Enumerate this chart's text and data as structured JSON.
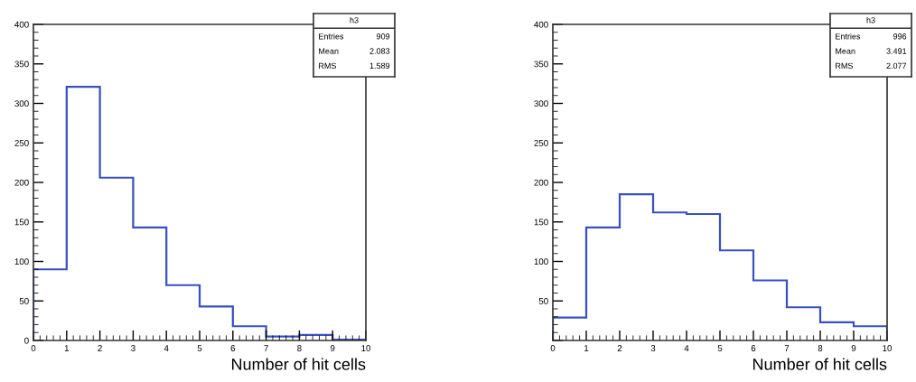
{
  "chart_data": [
    {
      "type": "histogram",
      "xlabel": "Number of hit cells",
      "bins": [
        0,
        1,
        2,
        3,
        4,
        5,
        6,
        7,
        8,
        9,
        10
      ],
      "values": [
        90,
        321,
        206,
        143,
        70,
        43,
        18,
        5,
        7,
        1
      ],
      "color": "#3a4fc0",
      "xlim": [
        0,
        10
      ],
      "ylim": [
        0,
        400
      ],
      "xticks": [
        0,
        1,
        2,
        3,
        4,
        5,
        6,
        7,
        8,
        9,
        10
      ],
      "yticks": [
        0,
        50,
        100,
        150,
        200,
        250,
        300,
        350,
        400
      ],
      "annotations": [
        "h3",
        "Entries",
        "909",
        "Mean",
        "2.083",
        "RMS",
        "1.589"
      ]
    },
    {
      "type": "histogram",
      "xlabel": "Number of hit cells",
      "bins": [
        0,
        1,
        2,
        3,
        4,
        5,
        6,
        7,
        8,
        9,
        10
      ],
      "values": [
        29,
        143,
        185,
        162,
        160,
        114,
        76,
        42,
        23,
        18
      ],
      "color": "#3a4fc0",
      "xlim": [
        0,
        10
      ],
      "ylim": [
        0,
        400
      ],
      "xticks": [
        0,
        1,
        2,
        3,
        4,
        5,
        6,
        7,
        8,
        9,
        10
      ],
      "yticks": [
        {
          "value": 0,
          "label": null
        },
        50,
        100,
        150,
        200,
        250,
        300,
        350,
        400
      ],
      "annotations": [
        "h3",
        "Entries",
        "996",
        "Mean",
        "3.491",
        "RMS",
        "2.077"
      ]
    }
  ]
}
